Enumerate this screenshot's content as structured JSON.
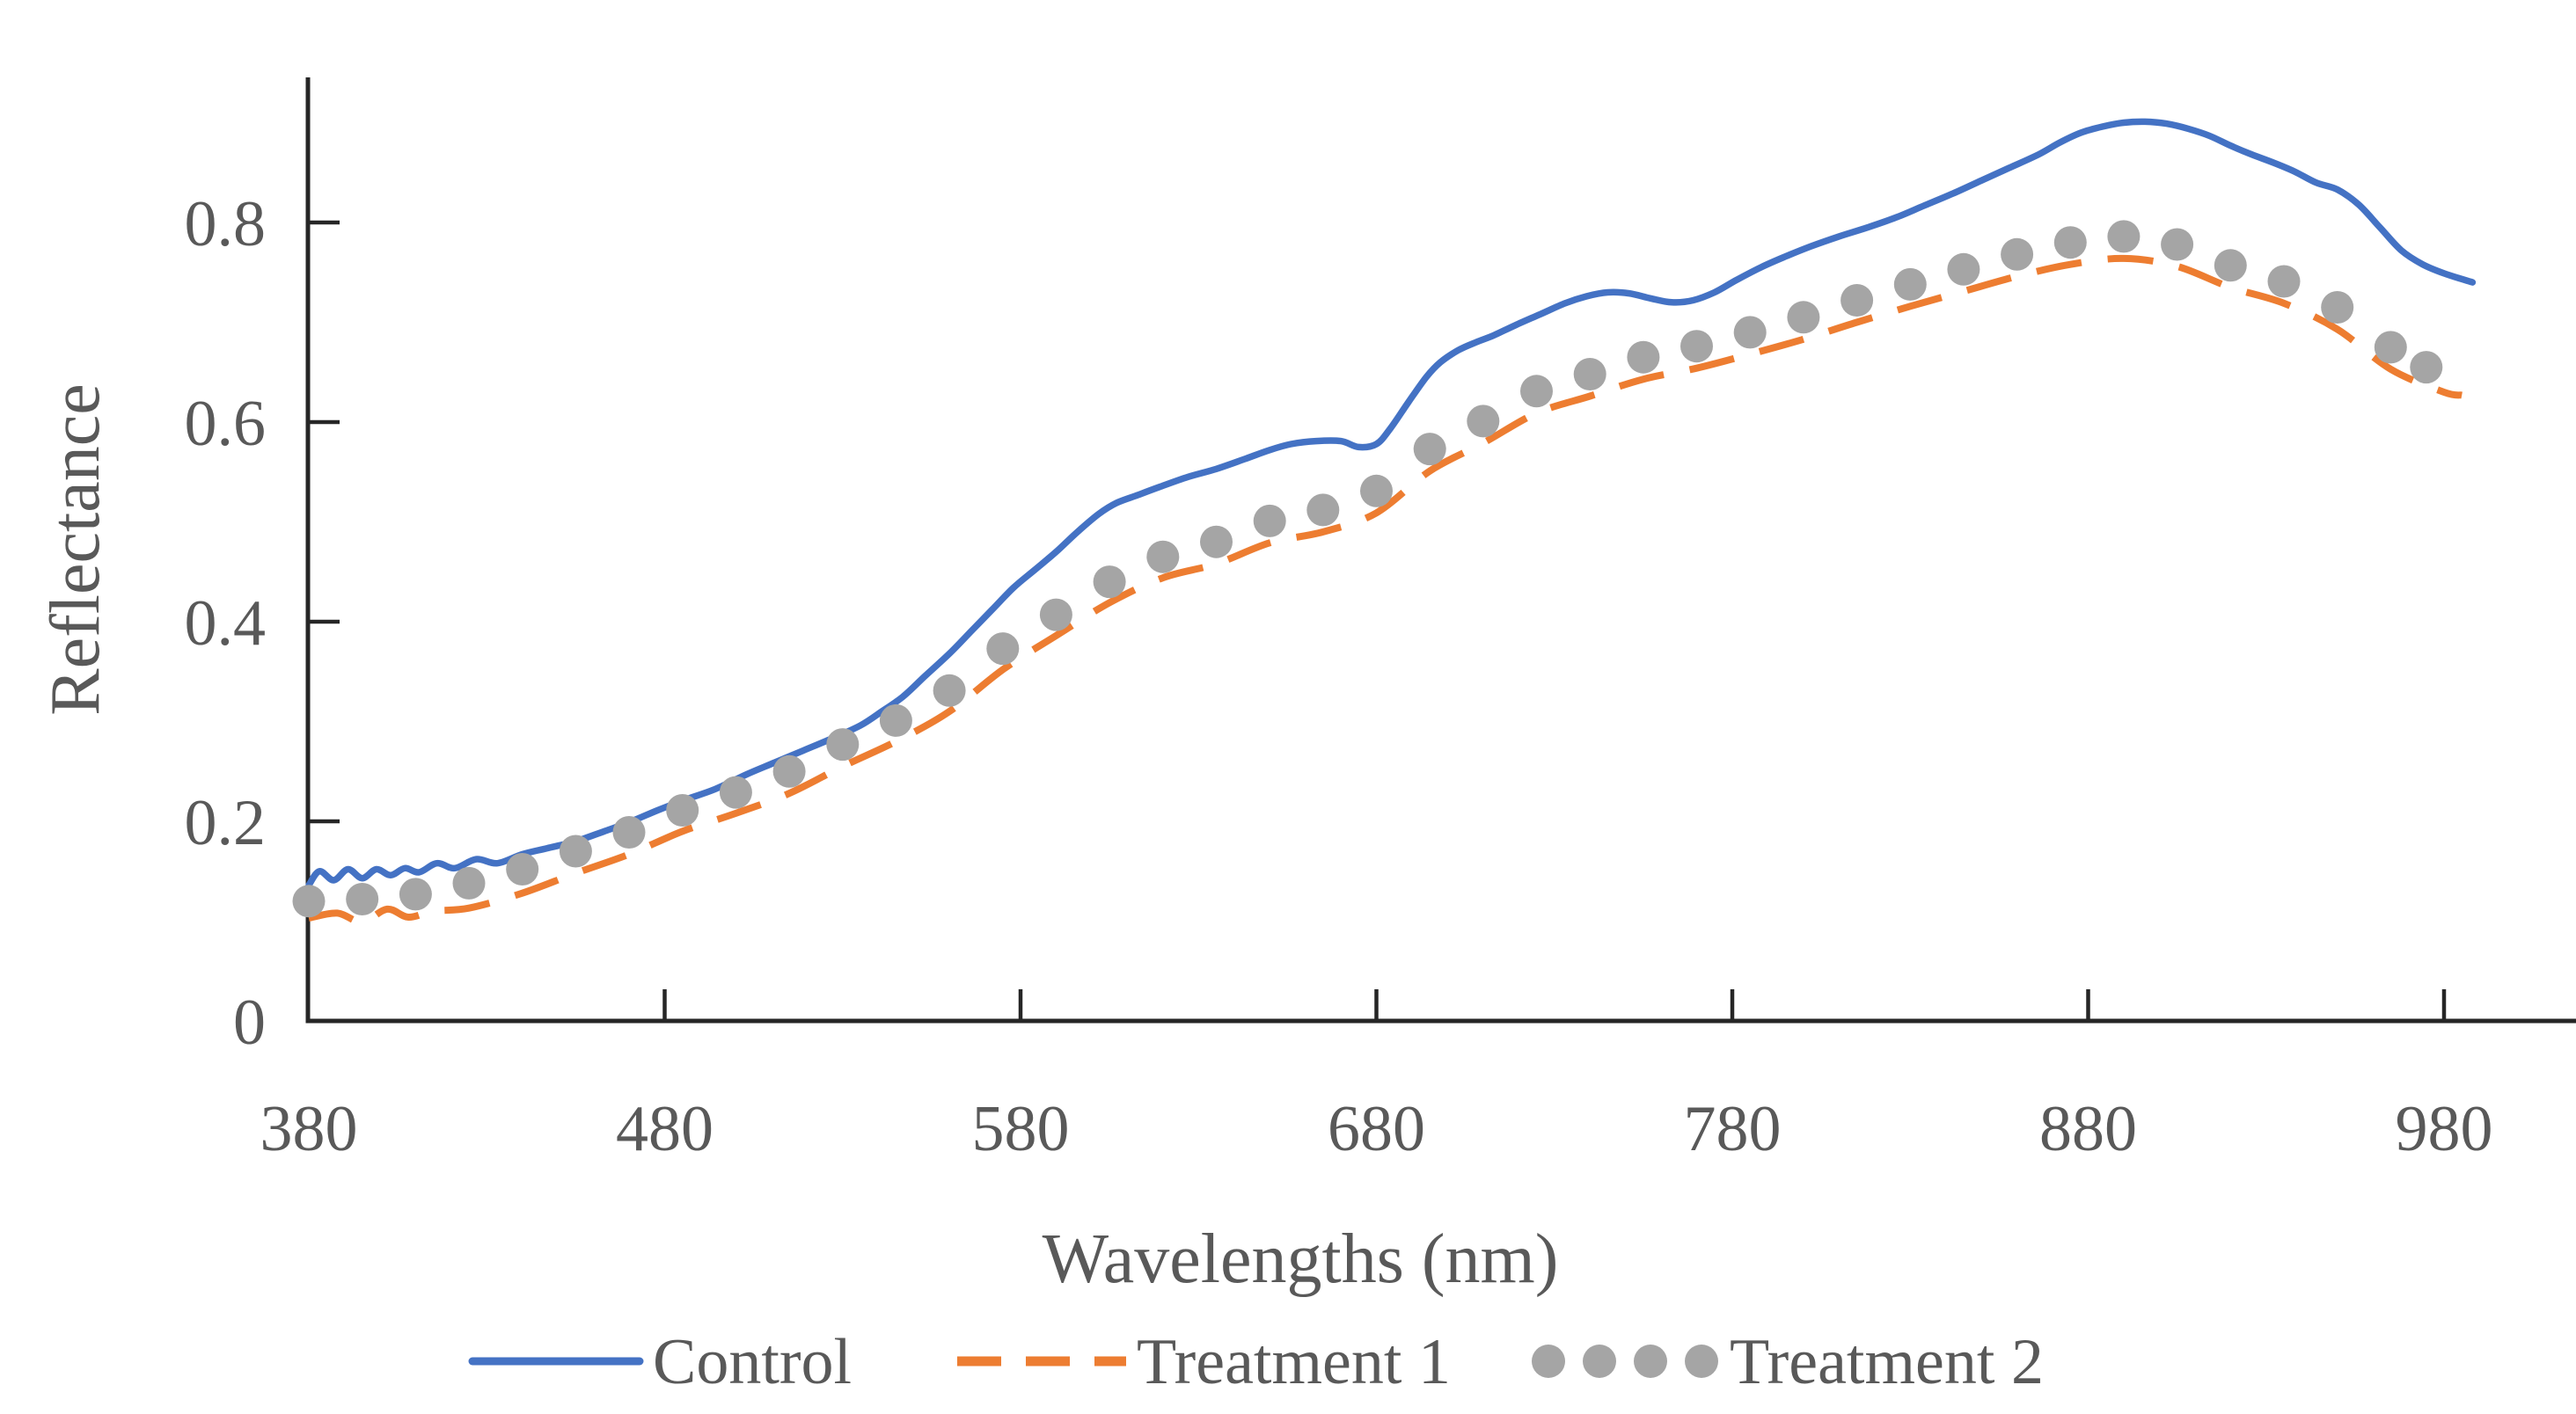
{
  "figure": {
    "background": "#FFFFFF"
  },
  "chart_data": {
    "type": "line",
    "title": "",
    "xlabel": "Wavelengths (nm)",
    "ylabel": "Reflectance",
    "x_ticks": {
      "values": [
        380,
        480,
        580,
        680,
        780,
        880,
        980
      ],
      "labels": [
        "380",
        "480",
        "580",
        "680",
        "780",
        "880",
        "980"
      ]
    },
    "y_ticks": {
      "values": [
        0,
        0.2,
        0.4,
        0.6,
        0.8
      ],
      "labels": [
        "0",
        "0.2",
        "0.4",
        "0.6",
        "0.8"
      ]
    },
    "xlim": [
      380,
      1018
    ],
    "ylim": [
      0,
      0.945
    ],
    "grid": false,
    "legend_position": "bottom",
    "axis_color": "#262626",
    "text_color": "#595959",
    "series": [
      {
        "name": "Control",
        "type": "line",
        "style": "solid",
        "color": "#4472C4",
        "x": [
          380,
          383,
          387,
          391,
          395,
          399,
          403,
          407,
          411,
          416,
          421,
          427,
          433,
          440,
          447,
          455,
          463,
          470,
          478,
          486,
          494,
          503,
          511,
          519,
          527,
          535,
          541,
          547,
          553,
          560,
          566,
          572,
          578,
          584,
          590,
          596,
          602,
          607,
          613,
          619,
          627,
          635,
          643,
          650,
          656,
          663,
          670,
          675,
          680,
          684,
          689,
          694,
          698,
          703,
          708,
          713,
          719,
          726,
          733,
          739,
          745,
          751,
          757,
          763,
          769,
          775,
          781,
          788,
          795,
          802,
          810,
          818,
          826,
          834,
          842,
          850,
          858,
          866,
          872,
          878,
          884,
          890,
          896,
          902,
          908,
          914,
          920,
          926,
          932,
          938,
          944,
          950,
          956,
          962,
          968,
          974,
          980,
          988
        ],
        "y": [
          0.136,
          0.15,
          0.141,
          0.152,
          0.143,
          0.152,
          0.146,
          0.153,
          0.149,
          0.158,
          0.153,
          0.162,
          0.158,
          0.167,
          0.173,
          0.18,
          0.19,
          0.199,
          0.211,
          0.222,
          0.232,
          0.247,
          0.259,
          0.271,
          0.283,
          0.296,
          0.31,
          0.325,
          0.345,
          0.368,
          0.39,
          0.412,
          0.434,
          0.452,
          0.47,
          0.49,
          0.508,
          0.519,
          0.527,
          0.535,
          0.545,
          0.553,
          0.563,
          0.572,
          0.578,
          0.581,
          0.581,
          0.575,
          0.578,
          0.594,
          0.62,
          0.645,
          0.66,
          0.672,
          0.68,
          0.687,
          0.697,
          0.708,
          0.719,
          0.726,
          0.73,
          0.729,
          0.724,
          0.72,
          0.722,
          0.73,
          0.742,
          0.755,
          0.766,
          0.776,
          0.786,
          0.795,
          0.805,
          0.817,
          0.829,
          0.842,
          0.855,
          0.868,
          0.88,
          0.89,
          0.896,
          0.9,
          0.901,
          0.899,
          0.894,
          0.887,
          0.877,
          0.868,
          0.86,
          0.851,
          0.84,
          0.833,
          0.818,
          0.795,
          0.772,
          0.758,
          0.749,
          0.74
        ]
      },
      {
        "name": "Treatment 1",
        "type": "line",
        "style": "dashed",
        "color": "#ED7D31",
        "x": [
          380,
          388,
          395,
          402,
          408,
          415,
          425,
          440,
          455,
          470,
          485,
          500,
          515,
          530,
          545,
          560,
          575,
          590,
          605,
          620,
          635,
          650,
          665,
          680,
          695,
          710,
          725,
          740,
          755,
          770,
          785,
          800,
          815,
          830,
          845,
          860,
          875,
          890,
          905,
          920,
          935,
          950,
          965,
          980,
          985
        ],
        "y": [
          0.103,
          0.108,
          0.099,
          0.112,
          0.104,
          0.11,
          0.113,
          0.128,
          0.148,
          0.167,
          0.19,
          0.208,
          0.228,
          0.255,
          0.28,
          0.31,
          0.352,
          0.386,
          0.419,
          0.444,
          0.458,
          0.479,
          0.49,
          0.509,
          0.551,
          0.579,
          0.609,
          0.626,
          0.643,
          0.654,
          0.668,
          0.683,
          0.7,
          0.716,
          0.731,
          0.746,
          0.758,
          0.764,
          0.756,
          0.735,
          0.719,
          0.693,
          0.653,
          0.63,
          0.627
        ]
      },
      {
        "name": "Treatment 2",
        "type": "scatter",
        "marker": "circle",
        "color": "#A5A5A5",
        "x": [
          380,
          395,
          410,
          425,
          440,
          455,
          470,
          485,
          500,
          515,
          530,
          545,
          560,
          575,
          590,
          605,
          620,
          635,
          650,
          665,
          680,
          695,
          710,
          725,
          740,
          755,
          770,
          785,
          800,
          815,
          830,
          845,
          860,
          875,
          890,
          905,
          920,
          935,
          950,
          965,
          975
        ],
        "y": [
          0.12,
          0.122,
          0.127,
          0.138,
          0.152,
          0.17,
          0.189,
          0.211,
          0.229,
          0.25,
          0.277,
          0.301,
          0.331,
          0.373,
          0.407,
          0.44,
          0.465,
          0.48,
          0.501,
          0.512,
          0.531,
          0.573,
          0.601,
          0.631,
          0.648,
          0.665,
          0.676,
          0.69,
          0.705,
          0.722,
          0.738,
          0.753,
          0.768,
          0.78,
          0.786,
          0.778,
          0.757,
          0.741,
          0.715,
          0.675,
          0.655
        ]
      }
    ]
  },
  "legend": {
    "items": [
      {
        "label": "Control",
        "swatch": "line",
        "color": "#4472C4"
      },
      {
        "label": "Treatment 1",
        "swatch": "dashes",
        "color": "#ED7D31"
      },
      {
        "label": "Treatment 2",
        "swatch": "dots",
        "color": "#A5A5A5"
      }
    ]
  }
}
